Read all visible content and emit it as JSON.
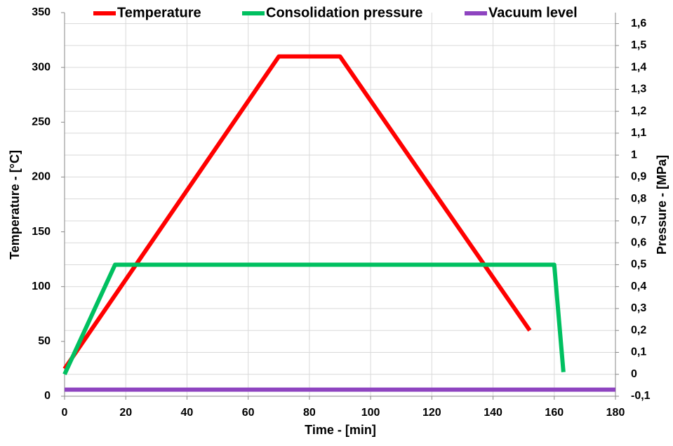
{
  "chart_data": {
    "type": "line",
    "xlabel": "Time - [min]",
    "ylabel": "Temperature - [°C]",
    "y2label": "Pressure - [MPa]",
    "xlim": [
      0,
      180
    ],
    "xticks": [
      0,
      20,
      40,
      60,
      80,
      100,
      120,
      140,
      160,
      180
    ],
    "ylim": [
      0,
      350
    ],
    "yticks": [
      0,
      50,
      100,
      150,
      200,
      250,
      300,
      350
    ],
    "y2lim": [
      -0.1,
      1.65
    ],
    "y2ticks": [
      {
        "value": -0.1,
        "label": "-0,1"
      },
      0,
      {
        "value": 0.1,
        "label": "0,1"
      },
      {
        "value": 0.2,
        "label": "0,2"
      },
      {
        "value": 0.3,
        "label": "0,3"
      },
      {
        "value": 0.4,
        "label": "0,4"
      },
      {
        "value": 0.5,
        "label": "0,5"
      },
      {
        "value": 0.6,
        "label": "0,6"
      },
      {
        "value": 0.7,
        "label": "0,7"
      },
      {
        "value": 0.8,
        "label": "0,8"
      },
      {
        "value": 0.9,
        "label": "0,9"
      },
      1,
      {
        "value": 1.1,
        "label": "1,1"
      },
      {
        "value": 1.2,
        "label": "1,2"
      },
      {
        "value": 1.3,
        "label": "1,3"
      },
      {
        "value": 1.4,
        "label": "1,4"
      },
      {
        "value": 1.5,
        "label": "1,5"
      },
      {
        "value": 1.6,
        "label": "1,6"
      }
    ],
    "grid": true,
    "legend": "top",
    "series": [
      {
        "name": "Temperature",
        "color": "#ff0000",
        "x": [
          0,
          70,
          90,
          152
        ],
        "values": [
          25,
          310,
          310,
          60
        ]
      },
      {
        "name": "Consolidation pressure",
        "color": "#00c060",
        "axis": "y2",
        "x": [
          0,
          16.5,
          160,
          163
        ],
        "values": [
          0,
          0.5,
          0.5,
          0.01
        ]
      },
      {
        "name": "Vacuum level",
        "color": "#8e44c0",
        "axis": "y2",
        "x": [
          0,
          180
        ],
        "values": [
          -0.07,
          -0.07
        ]
      }
    ]
  }
}
